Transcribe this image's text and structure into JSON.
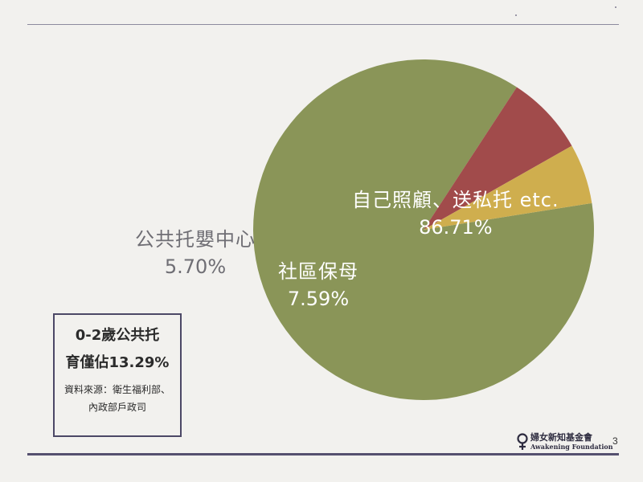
{
  "chart_data": {
    "type": "pie",
    "slices": [
      {
        "label": "自己照顧、送私托 etc.",
        "value": 86.71,
        "value_label": "86.71%",
        "color": "#8a9558"
      },
      {
        "label": "社區保母",
        "value": 7.59,
        "value_label": "7.59%",
        "color": "#a14b4b"
      },
      {
        "label": "公共托嬰中心",
        "value": 5.7,
        "value_label": "5.70%",
        "color": "#cfae4e"
      }
    ]
  },
  "summary": {
    "line1": "0-2歲公共托",
    "line2": "育僅佔13.29%",
    "source_line1": "資料來源：衛生福利部、",
    "source_line2": "內政部戶政司"
  },
  "logo": {
    "name_zh": "婦女新知基金會",
    "name_en": "Awakening Foundation",
    "icon": "female-symbol-icon"
  },
  "page_number": "3"
}
